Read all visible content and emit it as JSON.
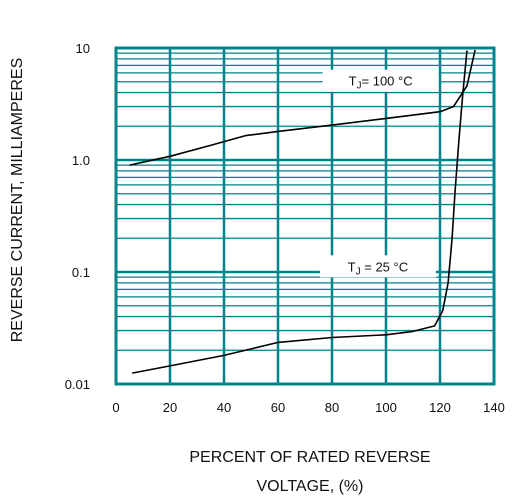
{
  "chart_data": {
    "type": "line",
    "title": "",
    "xlabel_line1": "PERCENT OF RATED REVERSE",
    "xlabel_line2": "VOLTAGE, (%)",
    "ylabel": "REVERSE CURRENT, MILLIAMPERES",
    "xlim": [
      0,
      140
    ],
    "ylim": [
      0.01,
      10
    ],
    "yscale": "log",
    "grid": true,
    "grid_color": "#00838a",
    "line_color": "#000000",
    "x_ticks": [
      "0",
      "20",
      "40",
      "60",
      "80",
      "100",
      "120",
      "140"
    ],
    "y_ticks": [
      {
        "value": 10,
        "label": "10"
      },
      {
        "value": 1,
        "label": "1.0"
      },
      {
        "value": 0.1,
        "label": "0.1"
      },
      {
        "value": 0.01,
        "label": "0.01"
      }
    ],
    "series": [
      {
        "name": "TJ = 100 °C",
        "x": [
          5,
          20,
          35,
          48,
          60,
          80,
          100,
          120,
          125,
          130,
          133
        ],
        "y": [
          0.9,
          1.08,
          1.35,
          1.65,
          1.8,
          2.05,
          2.35,
          2.7,
          3.0,
          4.6,
          9.6
        ]
      },
      {
        "name": "TJ = 25 °C",
        "x": [
          6,
          20,
          40,
          60,
          80,
          100,
          110,
          118,
          121,
          123,
          124.5,
          125.5,
          127,
          128.5,
          130
        ],
        "y": [
          0.0125,
          0.0145,
          0.018,
          0.0235,
          0.026,
          0.0275,
          0.0295,
          0.033,
          0.045,
          0.08,
          0.2,
          0.5,
          1.5,
          4.0,
          9.5
        ]
      }
    ],
    "annotations": [
      {
        "subscript_prefix": "T",
        "subscript": "J",
        "text": "= 100 °C",
        "x": 98,
        "y": 5.0
      },
      {
        "subscript_prefix": "T",
        "subscript": "J",
        "text": " = 25 °C",
        "x": 97,
        "y": 0.11
      }
    ]
  }
}
